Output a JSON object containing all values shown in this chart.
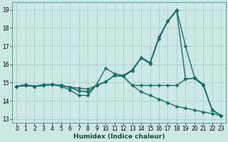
{
  "xlabel": "Humidex (Indice chaleur)",
  "bg_color": "#cce8e4",
  "grid_color": "#aaccca",
  "line_color": "#1a6e6a",
  "xlim": [
    -0.5,
    23.5
  ],
  "ylim": [
    12.8,
    19.4
  ],
  "yticks": [
    13,
    14,
    15,
    16,
    17,
    18,
    19
  ],
  "xticks": [
    0,
    1,
    2,
    3,
    4,
    5,
    6,
    7,
    8,
    9,
    10,
    11,
    12,
    13,
    14,
    15,
    16,
    17,
    18,
    19,
    20,
    21,
    22,
    23
  ],
  "series": [
    [
      14.8,
      14.9,
      14.8,
      14.9,
      14.9,
      14.8,
      14.6,
      14.3,
      14.3,
      14.9,
      15.8,
      15.5,
      15.4,
      15.7,
      16.4,
      16.1,
      17.5,
      18.4,
      19.0,
      17.0,
      15.3,
      14.9,
      13.5,
      13.2
    ],
    [
      14.8,
      14.85,
      14.8,
      14.85,
      14.9,
      14.85,
      14.75,
      14.7,
      14.65,
      14.85,
      15.05,
      15.4,
      15.35,
      15.65,
      16.35,
      16.05,
      17.4,
      18.35,
      18.95,
      15.2,
      15.25,
      14.85,
      13.5,
      13.2
    ],
    [
      14.8,
      14.85,
      14.8,
      14.85,
      14.9,
      14.85,
      14.75,
      14.55,
      14.5,
      14.85,
      15.05,
      15.4,
      15.35,
      14.85,
      14.85,
      14.85,
      14.85,
      14.85,
      14.85,
      15.2,
      15.25,
      14.85,
      13.5,
      13.2
    ],
    [
      14.8,
      14.85,
      14.8,
      14.85,
      14.9,
      14.85,
      14.75,
      14.55,
      14.5,
      14.85,
      15.05,
      15.4,
      15.35,
      14.85,
      14.5,
      14.3,
      14.1,
      13.9,
      13.7,
      13.6,
      13.5,
      13.4,
      13.3,
      13.2
    ]
  ],
  "markersize": 2.5,
  "linewidth": 1.0
}
